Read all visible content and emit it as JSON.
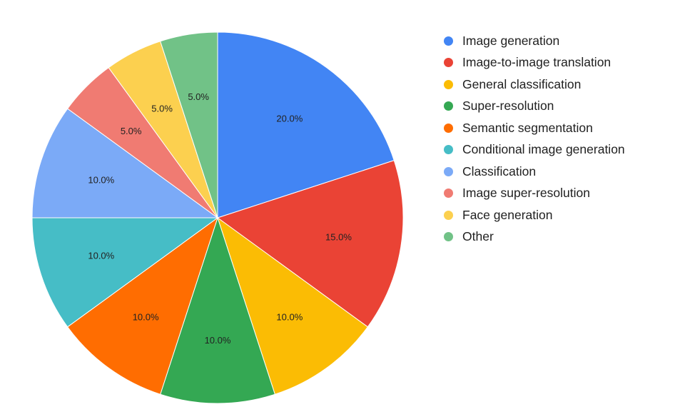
{
  "chart_data": {
    "type": "pie",
    "title": "",
    "start_angle_deg": 0,
    "direction": "clockwise",
    "legend_position": "right",
    "slices": [
      {
        "label": "Image generation",
        "value": 20.0,
        "display": "20.0%",
        "color": "#4285F4"
      },
      {
        "label": "Image-to-image translation",
        "value": 15.0,
        "display": "15.0%",
        "color": "#EA4335"
      },
      {
        "label": "General classification",
        "value": 10.0,
        "display": "10.0%",
        "color": "#FBBC04"
      },
      {
        "label": "Super-resolution",
        "value": 10.0,
        "display": "10.0%",
        "color": "#34A853"
      },
      {
        "label": "Semantic segmentation",
        "value": 10.0,
        "display": "10.0%",
        "color": "#FF6D01"
      },
      {
        "label": "Conditional image generation",
        "value": 10.0,
        "display": "10.0%",
        "color": "#46BDC6"
      },
      {
        "label": "Classification",
        "value": 10.0,
        "display": "10.0%",
        "color": "#7BAAF7"
      },
      {
        "label": "Image super-resolution",
        "value": 5.0,
        "display": "5.0%",
        "color": "#F07B72"
      },
      {
        "label": "Face generation",
        "value": 5.0,
        "display": "5.0%",
        "color": "#FCD04F"
      },
      {
        "label": "Other",
        "value": 5.0,
        "display": "5.0%",
        "color": "#71C287"
      }
    ]
  }
}
